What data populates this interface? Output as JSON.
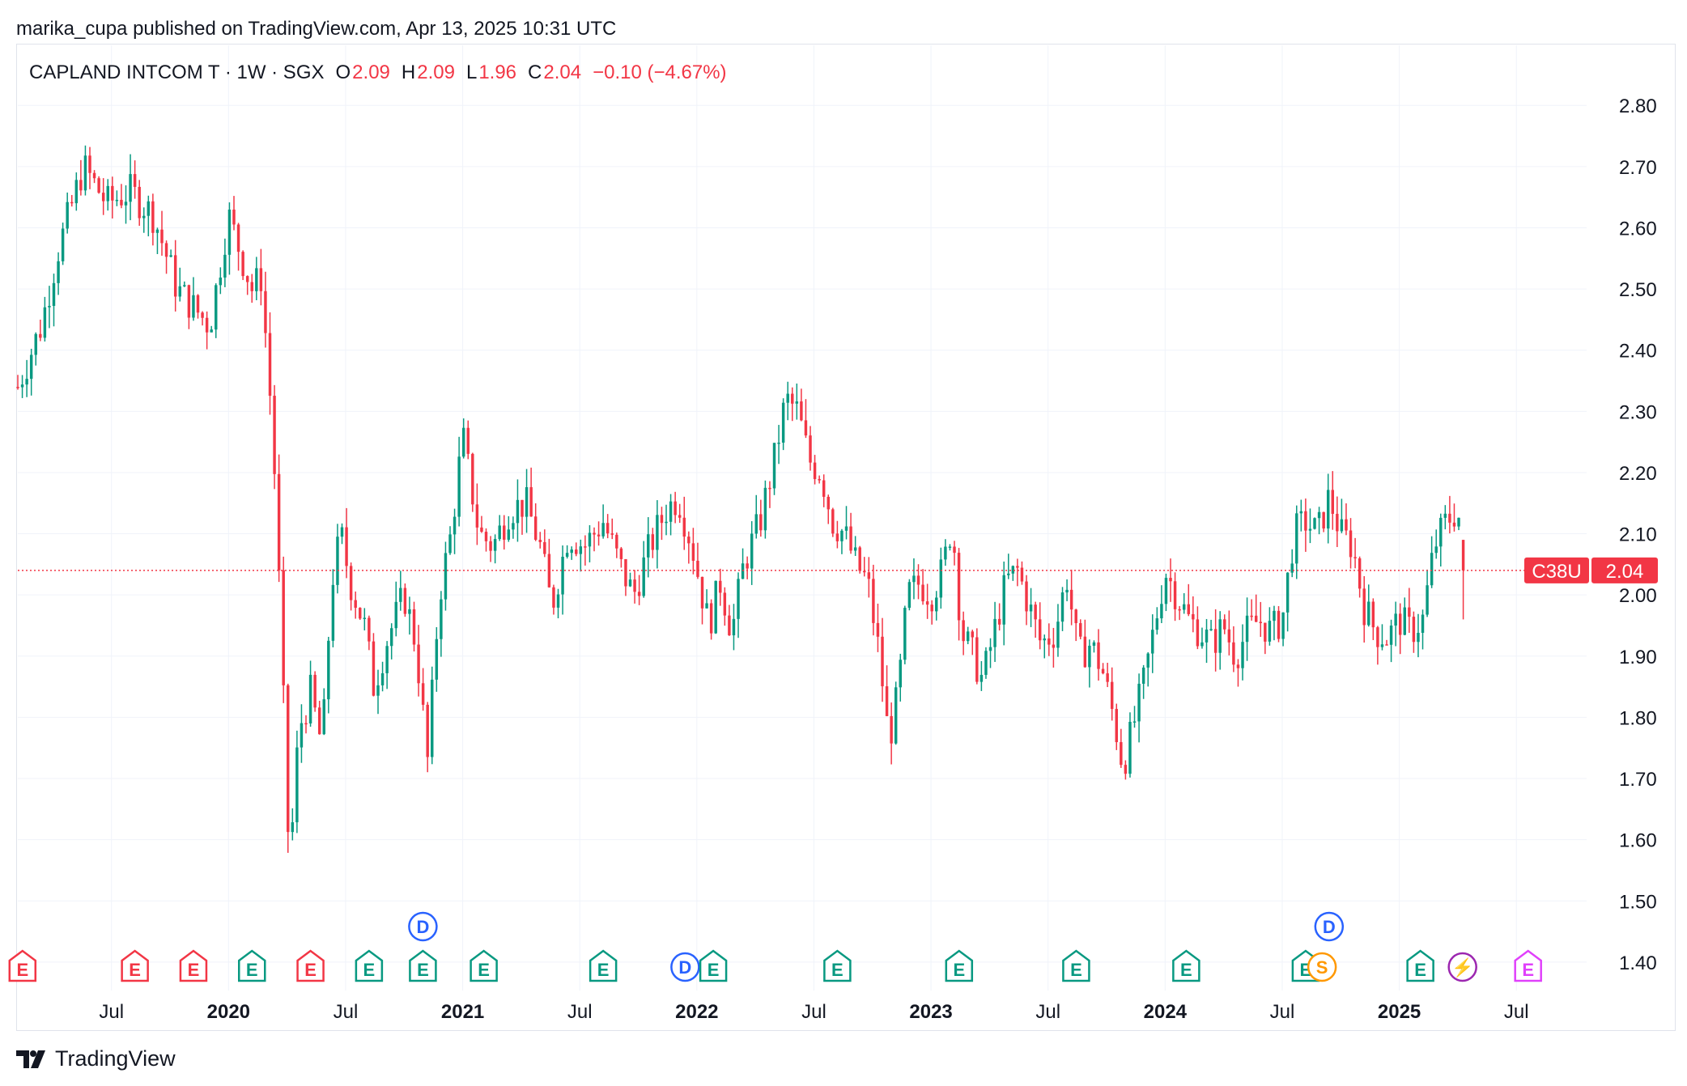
{
  "publisher": "marika_cupa published on TradingView.com, Apr 13, 2025 10:31 UTC",
  "legend": {
    "symbol": "CAPLAND INTCOM T · 1W · SGX",
    "o_label": "O",
    "o_value": "2.09",
    "h_label": "H",
    "h_value": "2.09",
    "l_label": "L",
    "l_value": "1.96",
    "c_label": "C",
    "c_value": "2.04",
    "change": "−0.10 (−4.67%)"
  },
  "footer": {
    "brand": "TradingView"
  },
  "colors": {
    "up": "#089981",
    "down": "#f23645",
    "grid": "#f0f3fa",
    "dividend": "#2962ff",
    "split": "#ff9800",
    "event": "#9c27b0",
    "earnings_future": "#e040fb"
  },
  "chart_data": {
    "type": "candlestick",
    "ticker_tag": "C38U",
    "last_price_tag": "2.04",
    "last_price": 2.04,
    "ylim": [
      1.38,
      2.84
    ],
    "y_ticks": [
      "2.80",
      "2.70",
      "2.60",
      "2.50",
      "2.40",
      "2.30",
      "2.20",
      "2.10",
      "2.00",
      "1.90",
      "1.80",
      "1.70",
      "1.60",
      "1.50",
      "1.40"
    ],
    "x_ticks": [
      {
        "label": "Jul",
        "t": 2019.5,
        "bold": false
      },
      {
        "label": "2020",
        "t": 2020.0,
        "bold": true
      },
      {
        "label": "Jul",
        "t": 2020.5,
        "bold": false
      },
      {
        "label": "2021",
        "t": 2021.0,
        "bold": true
      },
      {
        "label": "Jul",
        "t": 2021.5,
        "bold": false
      },
      {
        "label": "2022",
        "t": 2022.0,
        "bold": true
      },
      {
        "label": "Jul",
        "t": 2022.5,
        "bold": false
      },
      {
        "label": "2023",
        "t": 2023.0,
        "bold": true
      },
      {
        "label": "Jul",
        "t": 2023.5,
        "bold": false
      },
      {
        "label": "2024",
        "t": 2024.0,
        "bold": true
      },
      {
        "label": "Jul",
        "t": 2024.5,
        "bold": false
      },
      {
        "label": "2025",
        "t": 2025.0,
        "bold": true
      },
      {
        "label": "Jul",
        "t": 2025.5,
        "bold": false
      }
    ],
    "xlim": [
      2019.1,
      2025.8
    ],
    "weekly_close_path": [
      [
        2019.1,
        2.34
      ],
      [
        2019.2,
        2.44
      ],
      [
        2019.27,
        2.56
      ],
      [
        2019.38,
        2.7
      ],
      [
        2019.48,
        2.64
      ],
      [
        2019.58,
        2.66
      ],
      [
        2019.68,
        2.62
      ],
      [
        2019.78,
        2.5
      ],
      [
        2019.92,
        2.44
      ],
      [
        2020.0,
        2.62
      ],
      [
        2020.1,
        2.5
      ],
      [
        2020.14,
        2.52
      ],
      [
        2020.19,
        2.26
      ],
      [
        2020.22,
        1.98
      ],
      [
        2020.26,
        1.55
      ],
      [
        2020.3,
        1.78
      ],
      [
        2020.35,
        1.84
      ],
      [
        2020.4,
        1.75
      ],
      [
        2020.44,
        2.02
      ],
      [
        2020.48,
        2.1
      ],
      [
        2020.52,
        2.02
      ],
      [
        2020.58,
        1.95
      ],
      [
        2020.62,
        1.85
      ],
      [
        2020.68,
        1.93
      ],
      [
        2020.75,
        2.0
      ],
      [
        2020.8,
        1.92
      ],
      [
        2020.85,
        1.73
      ],
      [
        2020.9,
        2.0
      ],
      [
        2020.95,
        2.1
      ],
      [
        2021.0,
        2.26
      ],
      [
        2021.07,
        2.1
      ],
      [
        2021.13,
        2.08
      ],
      [
        2021.2,
        2.14
      ],
      [
        2021.27,
        2.15
      ],
      [
        2021.33,
        2.08
      ],
      [
        2021.38,
        1.98
      ],
      [
        2021.45,
        2.1
      ],
      [
        2021.52,
        2.08
      ],
      [
        2021.6,
        2.12
      ],
      [
        2021.68,
        2.04
      ],
      [
        2021.73,
        2.0
      ],
      [
        2021.8,
        2.08
      ],
      [
        2021.87,
        2.14
      ],
      [
        2021.92,
        2.16
      ],
      [
        2021.98,
        2.08
      ],
      [
        2022.05,
        1.95
      ],
      [
        2022.1,
        2.02
      ],
      [
        2022.15,
        1.94
      ],
      [
        2022.2,
        2.05
      ],
      [
        2022.27,
        2.12
      ],
      [
        2022.33,
        2.22
      ],
      [
        2022.38,
        2.32
      ],
      [
        2022.43,
        2.3
      ],
      [
        2022.48,
        2.22
      ],
      [
        2022.53,
        2.2
      ],
      [
        2022.58,
        2.12
      ],
      [
        2022.63,
        2.1
      ],
      [
        2022.68,
        2.05
      ],
      [
        2022.73,
        2.02
      ],
      [
        2022.78,
        1.9
      ],
      [
        2022.82,
        1.76
      ],
      [
        2022.86,
        1.84
      ],
      [
        2022.9,
        2.0
      ],
      [
        2022.95,
        2.02
      ],
      [
        2023.0,
        2.0
      ],
      [
        2023.05,
        2.04
      ],
      [
        2023.09,
        2.12
      ],
      [
        2023.13,
        1.94
      ],
      [
        2023.18,
        1.9
      ],
      [
        2023.22,
        1.86
      ],
      [
        2023.27,
        1.94
      ],
      [
        2023.32,
        2.02
      ],
      [
        2023.37,
        2.04
      ],
      [
        2023.42,
        1.98
      ],
      [
        2023.47,
        1.92
      ],
      [
        2023.53,
        1.94
      ],
      [
        2023.58,
        2.03
      ],
      [
        2023.63,
        1.9
      ],
      [
        2023.68,
        1.92
      ],
      [
        2023.73,
        1.88
      ],
      [
        2023.78,
        1.8
      ],
      [
        2023.82,
        1.72
      ],
      [
        2023.86,
        1.78
      ],
      [
        2023.91,
        1.86
      ],
      [
        2023.96,
        1.96
      ],
      [
        2024.0,
        2.04
      ],
      [
        2024.05,
        2.0
      ],
      [
        2024.1,
        1.96
      ],
      [
        2024.15,
        1.94
      ],
      [
        2024.2,
        1.92
      ],
      [
        2024.25,
        1.95
      ],
      [
        2024.3,
        1.9
      ],
      [
        2024.35,
        1.94
      ],
      [
        2024.4,
        1.96
      ],
      [
        2024.45,
        1.94
      ],
      [
        2024.5,
        1.96
      ],
      [
        2024.55,
        2.1
      ],
      [
        2024.6,
        2.12
      ],
      [
        2024.65,
        2.1
      ],
      [
        2024.7,
        2.16
      ],
      [
        2024.75,
        2.1
      ],
      [
        2024.8,
        2.08
      ],
      [
        2024.85,
        1.98
      ],
      [
        2024.9,
        1.94
      ],
      [
        2024.95,
        1.93
      ],
      [
        2025.0,
        1.96
      ],
      [
        2025.05,
        1.94
      ],
      [
        2025.1,
        1.96
      ],
      [
        2025.15,
        2.08
      ],
      [
        2025.2,
        2.12
      ],
      [
        2025.25,
        2.14
      ],
      [
        2025.28,
        2.04
      ]
    ],
    "events": [
      {
        "label": "E",
        "t": 2019.12,
        "kind": "earnings_miss"
      },
      {
        "label": "E",
        "t": 2019.6,
        "kind": "earnings_miss"
      },
      {
        "label": "E",
        "t": 2019.85,
        "kind": "earnings_miss"
      },
      {
        "label": "E",
        "t": 2020.1,
        "kind": "earnings_beat"
      },
      {
        "label": "E",
        "t": 2020.35,
        "kind": "earnings_miss"
      },
      {
        "label": "E",
        "t": 2020.6,
        "kind": "earnings_beat"
      },
      {
        "label": "D",
        "t": 2020.83,
        "kind": "dividend",
        "raised": true
      },
      {
        "label": "E",
        "t": 2020.83,
        "kind": "earnings_beat"
      },
      {
        "label": "E",
        "t": 2021.09,
        "kind": "earnings_beat"
      },
      {
        "label": "E",
        "t": 2021.6,
        "kind": "earnings_beat"
      },
      {
        "label": "D",
        "t": 2021.95,
        "kind": "dividend"
      },
      {
        "label": "E",
        "t": 2022.07,
        "kind": "earnings_beat"
      },
      {
        "label": "E",
        "t": 2022.6,
        "kind": "earnings_beat"
      },
      {
        "label": "E",
        "t": 2023.12,
        "kind": "earnings_beat"
      },
      {
        "label": "E",
        "t": 2023.62,
        "kind": "earnings_beat"
      },
      {
        "label": "E",
        "t": 2024.09,
        "kind": "earnings_beat"
      },
      {
        "label": "D",
        "t": 2024.7,
        "kind": "dividend",
        "raised": true
      },
      {
        "label": "E",
        "t": 2024.6,
        "kind": "earnings_beat"
      },
      {
        "label": "S",
        "t": 2024.67,
        "kind": "split"
      },
      {
        "label": "E",
        "t": 2025.09,
        "kind": "earnings_beat"
      },
      {
        "label": "⚡",
        "t": 2025.27,
        "kind": "event"
      },
      {
        "label": "E",
        "t": 2025.55,
        "kind": "earnings_future"
      }
    ]
  }
}
